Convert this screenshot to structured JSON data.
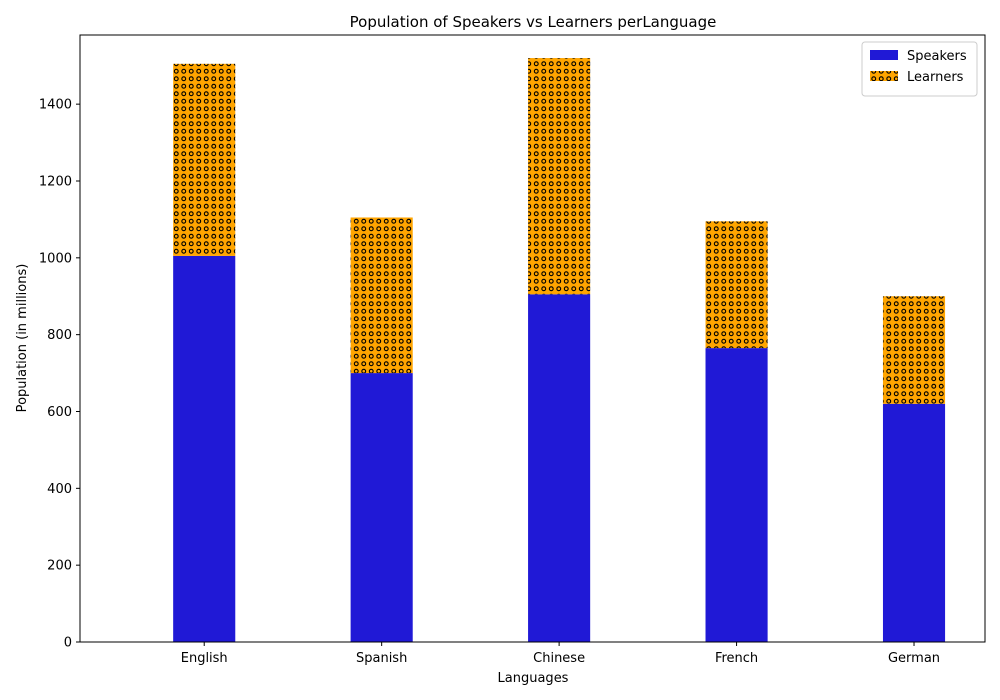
{
  "chart_data": {
    "type": "bar",
    "stacked": true,
    "title": "Population of Speakers vs Learners perLanguage",
    "xlabel": "Languages",
    "ylabel": "Population (in millions)",
    "categories": [
      "English",
      "Spanish",
      "Chinese",
      "French",
      "German"
    ],
    "series": [
      {
        "name": "Speakers",
        "values": [
          1005,
          700,
          905,
          765,
          620
        ],
        "color": "#2019d6",
        "pattern": "solid"
      },
      {
        "name": "Learners",
        "values": [
          500,
          405,
          615,
          330,
          280
        ],
        "color": "#ffa500",
        "pattern": "dots"
      }
    ],
    "ylim": [
      0,
      1580
    ],
    "yticks": [
      0,
      200,
      400,
      600,
      800,
      1000,
      1200,
      1400
    ],
    "legend": "top-right",
    "grid": false
  }
}
